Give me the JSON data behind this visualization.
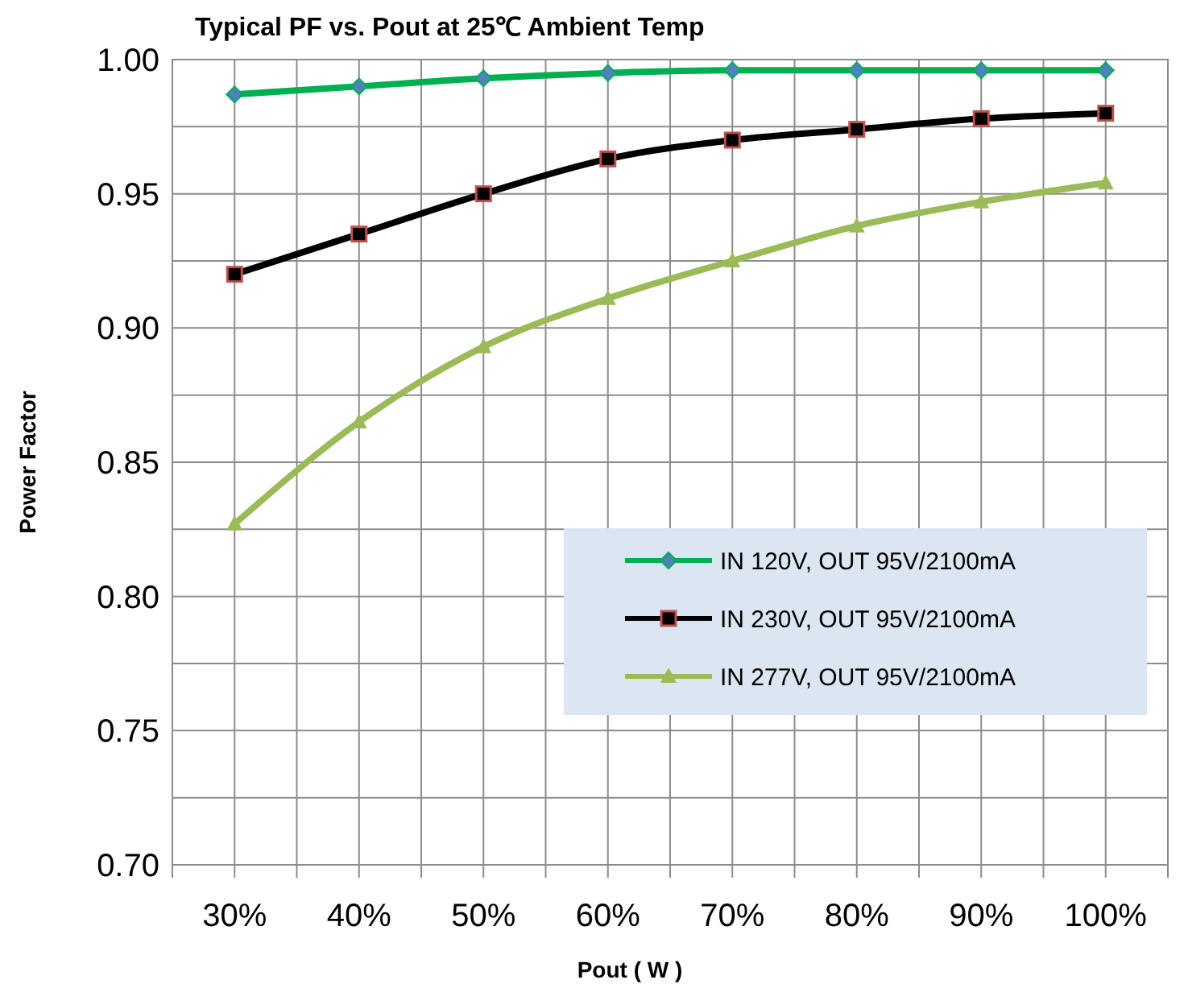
{
  "chart_data": {
    "type": "line",
    "title": "Typical PF vs. Pout at 25℃  Ambient Temp",
    "xlabel": "Pout ( W )",
    "ylabel": "Power Factor",
    "categories": [
      "30%",
      "40%",
      "50%",
      "60%",
      "70%",
      "80%",
      "90%",
      "100%"
    ],
    "series": [
      {
        "name": "IN 120V, OUT 95V/2100mA",
        "color": "#00b050",
        "marker": "diamond",
        "values": [
          0.987,
          0.99,
          0.993,
          0.995,
          0.996,
          0.996,
          0.996,
          0.996
        ]
      },
      {
        "name": "IN 230V, OUT 95V/2100mA",
        "color": "#000000",
        "marker": "square",
        "values": [
          0.92,
          0.935,
          0.95,
          0.963,
          0.97,
          0.974,
          0.978,
          0.98
        ]
      },
      {
        "name": "IN 277V, OUT 95V/2100mA",
        "color": "#9bbb59",
        "marker": "triangle",
        "values": [
          0.827,
          0.865,
          0.893,
          0.911,
          0.925,
          0.938,
          0.947,
          0.954
        ]
      }
    ],
    "ylim": [
      0.7,
      1.0
    ],
    "yticks": [
      "0.70",
      {
        "value": 0.725,
        "label": null
      },
      {
        "value": 0.75,
        "label": "0.75"
      },
      {
        "value": 0.775,
        "label": null
      },
      {
        "value": 0.8,
        "label": "0.80"
      },
      {
        "value": 0.825,
        "label": null
      },
      {
        "value": 0.85,
        "label": "0.85"
      },
      {
        "value": 0.875,
        "label": null
      },
      {
        "value": 0.9,
        "label": "0.90"
      },
      {
        "value": 0.925,
        "label": null
      },
      {
        "value": 0.95,
        "label": "0.95"
      },
      {
        "value": 0.975,
        "label": null
      },
      {
        "value": 1.0,
        "label": "1.00"
      }
    ],
    "grid": true,
    "legend": "right",
    "line_style": "solid"
  }
}
